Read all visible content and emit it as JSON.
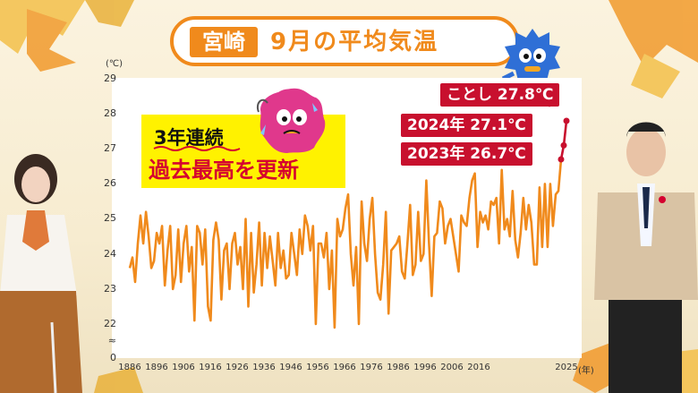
{
  "title": {
    "place": "宮崎",
    "text": "9月の平均気温"
  },
  "highlight": {
    "line1": "3年連続",
    "line2": "過去最高を更新"
  },
  "annotations": [
    {
      "label": "ことし 27.8℃"
    },
    {
      "label": "2024年 27.1℃"
    },
    {
      "label": "2023年 26.7℃"
    }
  ],
  "colors": {
    "line": "#f08a1c",
    "accent": "#c8102e",
    "title": "#f08a1c",
    "highlight_bg": "#fff200"
  },
  "chart_data": {
    "type": "line",
    "xlabel": "(年)",
    "ylabel": "(℃)",
    "ylim": [
      22,
      29
    ],
    "y_axis_break": true,
    "yticks": [
      "29",
      "28",
      "27",
      "26",
      "25",
      "24",
      "23",
      "22",
      "≈",
      "0"
    ],
    "xticks": [
      "1886",
      "1896",
      "1906",
      "1916",
      "1926",
      "1936",
      "1946",
      "1956",
      "1966",
      "1976",
      "1986",
      "1996",
      "2006",
      "2016",
      "2025"
    ],
    "grid": false,
    "series": [
      {
        "values": [
          23.6,
          23.9,
          23.2,
          24.3,
          25.1,
          24.3,
          25.2,
          24.5,
          23.6,
          23.8,
          24.6,
          24.3,
          24.8,
          23.1,
          24.1,
          24.8,
          23.0,
          23.4,
          24.7,
          23.2,
          24.3,
          24.8,
          23.5,
          24.2,
          22.1,
          24.8,
          24.6,
          23.7,
          24.7,
          22.5,
          22.1,
          24.4,
          24.9,
          24.4,
          22.7,
          24.1,
          24.3,
          23.0,
          24.3,
          24.6,
          23.7,
          24.2,
          23.0,
          25.0,
          22.5,
          24.6,
          22.9,
          23.7,
          24.9,
          23.1,
          24.6,
          23.6,
          24.5,
          23.8,
          23.1,
          24.6,
          23.6,
          24.1,
          23.3,
          23.4,
          24.6,
          24.0,
          23.4,
          24.7,
          24.0,
          25.1,
          24.8,
          24.1,
          24.8,
          22.0,
          24.3,
          24.3,
          23.9,
          24.6,
          23.0,
          24.1,
          21.9,
          25.0,
          24.5,
          24.7,
          25.3,
          25.7,
          24.0,
          23.1,
          24.2,
          22.0,
          25.5,
          24.3,
          23.8,
          25.0,
          25.6,
          24.0,
          22.9,
          22.7,
          23.7,
          25.2,
          22.3,
          24.1,
          24.2,
          24.3,
          24.5,
          23.5,
          23.3,
          24.3,
          25.4,
          23.4,
          23.7,
          25.2,
          23.8,
          24.0,
          26.1,
          24.3,
          22.8,
          24.5,
          24.6,
          25.5,
          25.3,
          24.3,
          24.8,
          25.0,
          24.5,
          24.0,
          23.5,
          25.1,
          24.9,
          24.8,
          25.6,
          26.1,
          26.3,
          24.2,
          25.2,
          24.9,
          25.1,
          24.7,
          25.5,
          25.4,
          25.6,
          24.3,
          26.4,
          24.7,
          25.0,
          24.5,
          25.8,
          24.4,
          23.9,
          24.6,
          25.6,
          24.7,
          25.4,
          24.9,
          23.7,
          23.7,
          25.9,
          24.2,
          26.0,
          24.2,
          26.0,
          24.8,
          25.7,
          25.8,
          26.7,
          27.1,
          27.8
        ]
      }
    ]
  }
}
